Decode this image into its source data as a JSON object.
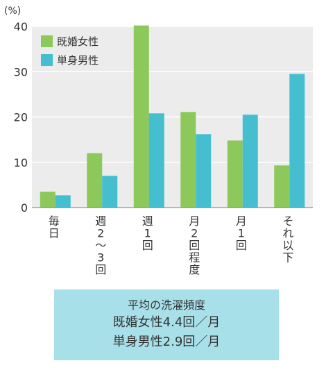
{
  "chart_data": {
    "type": "bar",
    "unit_label": "(%)",
    "ylim": [
      0,
      40
    ],
    "yticks": [
      0,
      10,
      20,
      30,
      40
    ],
    "grid": true,
    "legend_position": "top-left",
    "categories": [
      "毎日",
      "週2〜3回",
      "週1回",
      "月2回程度",
      "月1回",
      "それ以下"
    ],
    "series": [
      {
        "name": "既婚女性",
        "color": "#8dc85a",
        "values": [
          3.5,
          12.0,
          40.2,
          21.1,
          14.8,
          9.3
        ]
      },
      {
        "name": "単身男性",
        "color": "#45bfd0",
        "values": [
          2.7,
          7.0,
          20.8,
          16.2,
          20.5,
          29.5
        ]
      }
    ]
  },
  "summary": {
    "title": "平均の洗濯頻度",
    "lines": [
      "既婚女性4.4回／月",
      "単身男性2.9回／月"
    ],
    "background": "#a8e0ea"
  }
}
